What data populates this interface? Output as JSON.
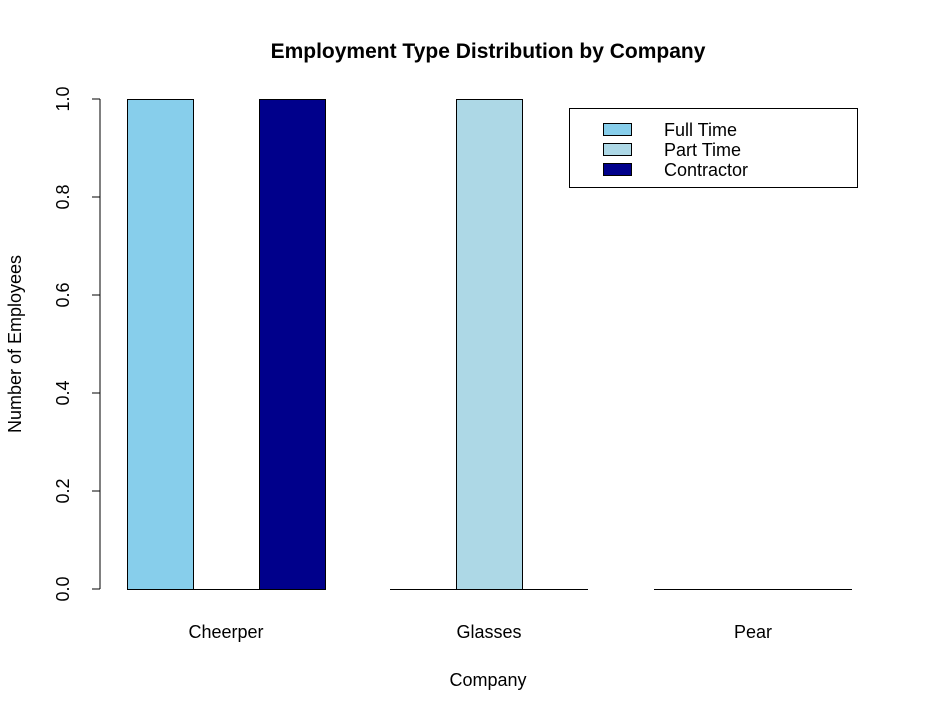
{
  "chart_data": {
    "type": "bar",
    "title": "Employment Type Distribution by Company",
    "xlabel": "Company",
    "ylabel": "Number of Employees",
    "categories": [
      "Cheerper",
      "Glasses",
      "Pear"
    ],
    "series": [
      {
        "name": "Full Time",
        "color": "#87CEEB",
        "values": [
          1,
          0,
          0
        ]
      },
      {
        "name": "Part Time",
        "color": "#ADD8E6",
        "values": [
          0,
          1,
          0
        ]
      },
      {
        "name": "Contractor",
        "color": "#00008B",
        "values": [
          1,
          0,
          0
        ]
      }
    ],
    "ylim": [
      0,
      1
    ],
    "yticks": [
      "0.0",
      "0.2",
      "0.4",
      "0.6",
      "0.8",
      "1.0"
    ],
    "legend_position": "top-right",
    "grid": false
  }
}
